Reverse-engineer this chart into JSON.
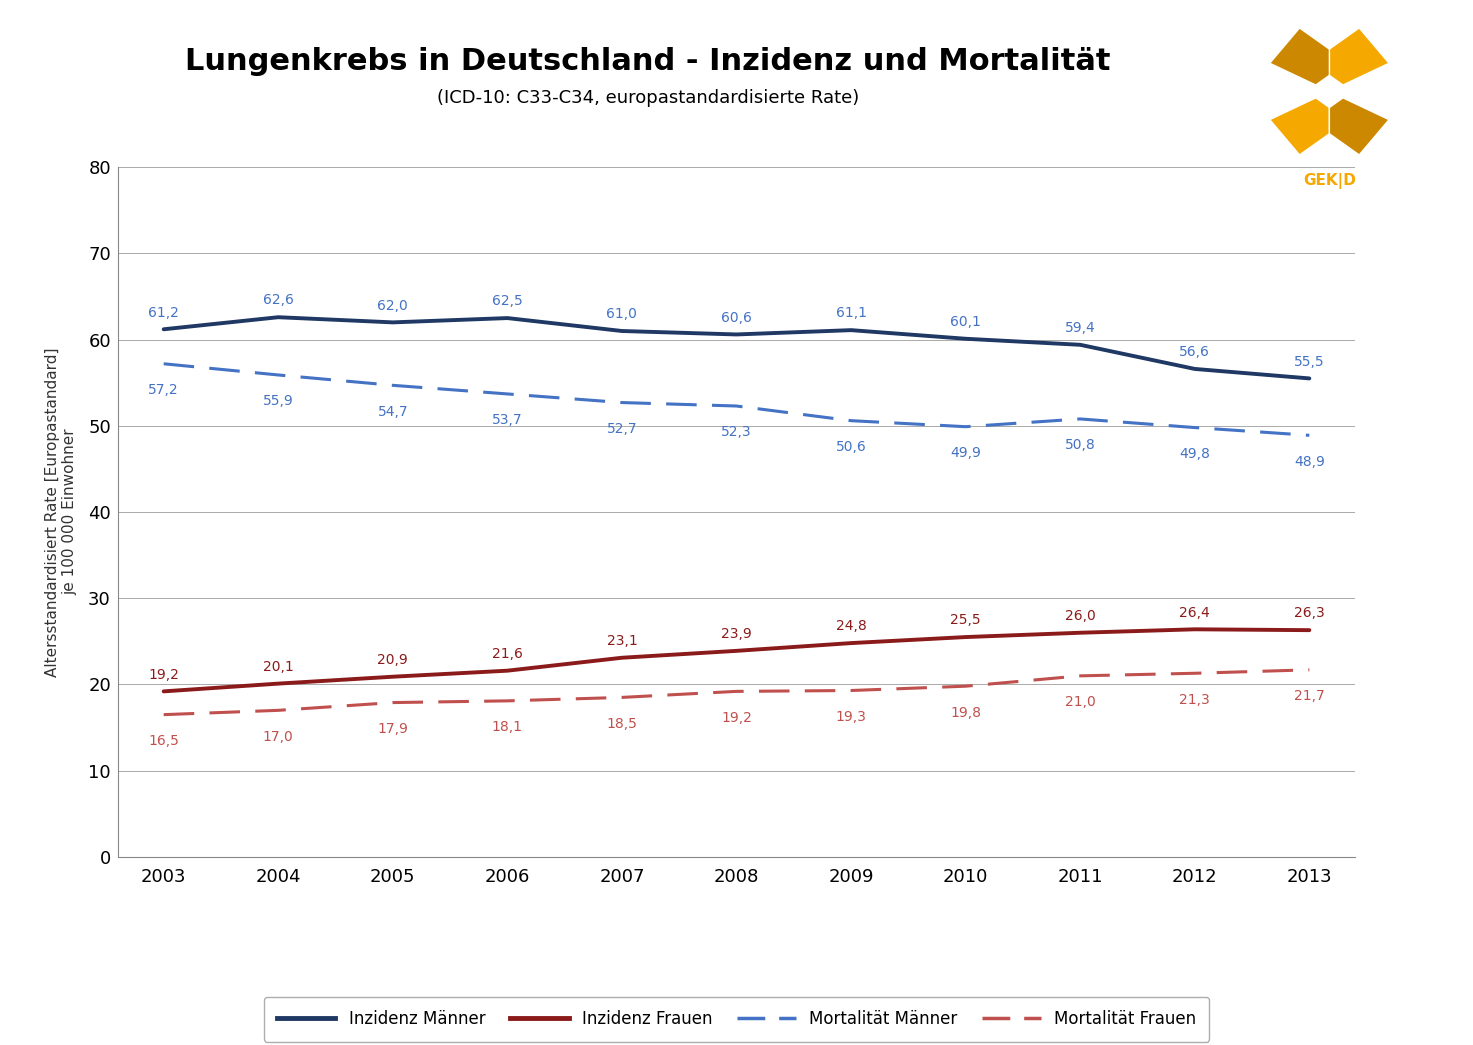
{
  "title": "Lungenkrebs in Deutschland - Inzidenz und Mortalität",
  "subtitle": "(ICD-10: C33-C34, europastandardisierte Rate)",
  "ylabel": "Altersstandardisiert Rate [Europastandard]\nje 100 000 Einwohner",
  "years": [
    2003,
    2004,
    2005,
    2006,
    2007,
    2008,
    2009,
    2010,
    2011,
    2012,
    2013
  ],
  "inzidenz_maenner": [
    61.2,
    62.6,
    62.0,
    62.5,
    61.0,
    60.6,
    61.1,
    60.1,
    59.4,
    56.6,
    55.5
  ],
  "inzidenz_frauen": [
    19.2,
    20.1,
    20.9,
    21.6,
    23.1,
    23.9,
    24.8,
    25.5,
    26.0,
    26.4,
    26.3
  ],
  "mortalitaet_maenner": [
    57.2,
    55.9,
    54.7,
    53.7,
    52.7,
    52.3,
    50.6,
    49.9,
    50.8,
    49.8,
    48.9
  ],
  "mortalitaet_frauen": [
    16.5,
    17.0,
    17.9,
    18.1,
    18.5,
    19.2,
    19.3,
    19.8,
    21.0,
    21.3,
    21.7
  ],
  "color_blue_solid": "#1F3864",
  "color_red_solid": "#8B1A1A",
  "color_blue_dashed": "#4472C4",
  "color_red_dashed": "#C0504D",
  "ylim": [
    0,
    80
  ],
  "yticks": [
    0,
    10,
    20,
    30,
    40,
    50,
    60,
    70,
    80
  ],
  "background_color": "#FFFFFF",
  "plot_bg_color": "#FFFFFF",
  "grid_color": "#AAAAAA",
  "legend_labels": [
    "Inzidenz Männer",
    "Inzidenz Frauen",
    "Mortalität Männer",
    "Mortalität Frauen"
  ],
  "title_fontsize": 22,
  "subtitle_fontsize": 13,
  "ylabel_fontsize": 11,
  "annotation_fontsize": 10,
  "tick_fontsize": 13,
  "legend_fontsize": 12,
  "logo_orange": "#F5A800",
  "logo_dark_orange": "#CC8800",
  "logo_text_color": "#F5A800"
}
